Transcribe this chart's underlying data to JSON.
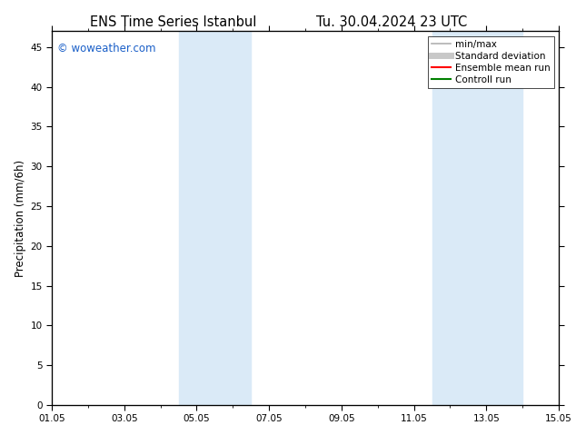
{
  "title_left": "ENS Time Series Istanbul",
  "title_right": "Tu. 30.04.2024 23 UTC",
  "ylabel": "Precipitation (mm/6h)",
  "xlabel": "",
  "xtick_labels": [
    "01.05",
    "03.05",
    "05.05",
    "07.05",
    "09.05",
    "11.05",
    "13.05",
    "15.05"
  ],
  "xtick_positions": [
    0,
    2,
    4,
    6,
    8,
    10,
    12,
    14
  ],
  "ylim": [
    0,
    47
  ],
  "yticks": [
    0,
    5,
    10,
    15,
    20,
    25,
    30,
    35,
    40,
    45
  ],
  "bg_color": "#ffffff",
  "plot_bg_color": "#ffffff",
  "shaded_bands": [
    {
      "x_start": 3.5,
      "x_end": 5.5,
      "color": "#daeaf7"
    },
    {
      "x_start": 10.5,
      "x_end": 13.0,
      "color": "#daeaf7"
    }
  ],
  "legend_entries": [
    {
      "label": "min/max",
      "color": "#b0b0b0",
      "lw": 1.2,
      "style": "solid"
    },
    {
      "label": "Standard deviation",
      "color": "#c8c8c8",
      "lw": 5,
      "style": "solid"
    },
    {
      "label": "Ensemble mean run",
      "color": "#ff0000",
      "lw": 1.5,
      "style": "solid"
    },
    {
      "label": "Controll run",
      "color": "#008000",
      "lw": 1.5,
      "style": "solid"
    }
  ],
  "watermark": "© woweather.com",
  "watermark_color": "#1a5fc8",
  "watermark_fontsize": 8.5,
  "title_fontsize": 10.5,
  "tick_fontsize": 7.5,
  "ylabel_fontsize": 8.5,
  "legend_fontsize": 7.5,
  "total_days": 14
}
